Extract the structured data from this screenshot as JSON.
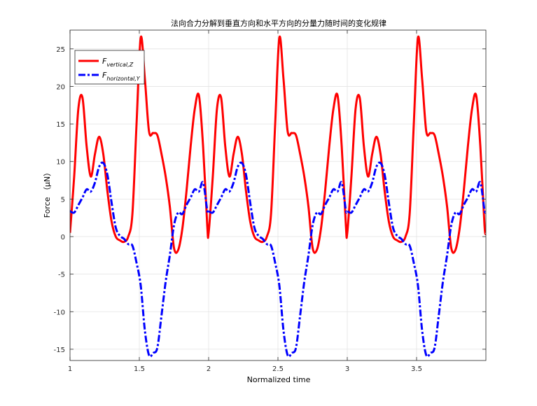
{
  "chart_data": {
    "type": "line",
    "title": "法向合力分解到垂直方向和水平方向的分量力随时间的变化规律",
    "xlabel": "Normalized time",
    "ylabel": "Force （μN）",
    "xlim": [
      1,
      4
    ],
    "ylim": [
      -16.5,
      27.5
    ],
    "xticks": [
      1,
      1.5,
      2,
      2.5,
      3,
      3.5
    ],
    "xtick_labels": [
      "1",
      "1.5",
      "2",
      "2.5",
      "3",
      "3.5"
    ],
    "yticks": [
      -15,
      -10,
      -5,
      0,
      5,
      10,
      15,
      20,
      25
    ],
    "ytick_labels": [
      "-15",
      "-10",
      "-5",
      "0",
      "5",
      "10",
      "15",
      "20",
      "25"
    ],
    "grid": true,
    "legend_position": "top-left",
    "legend": {
      "vertical": {
        "main": "F",
        "sub": "vertical,Z"
      },
      "horizontal": {
        "main": "F",
        "sub": "horizontal,Y"
      }
    },
    "period": 1,
    "series": [
      {
        "key": "vertical",
        "color": "#ff0000",
        "dash": "solid",
        "x_in_period": [
          0,
          0.03,
          0.06,
          0.09,
          0.12,
          0.15,
          0.18,
          0.21,
          0.24,
          0.27,
          0.3,
          0.33,
          0.36,
          0.39,
          0.42,
          0.45,
          0.48,
          0.51,
          0.54,
          0.57,
          0.6,
          0.63,
          0.66,
          0.69,
          0.72,
          0.75,
          0.78,
          0.81,
          0.84,
          0.87,
          0.9,
          0.93,
          0.96,
          0.99,
          1.0
        ],
        "values": [
          0.5,
          8,
          17,
          18.5,
          12,
          8,
          11,
          13.3,
          11,
          6,
          2,
          0,
          -0.5,
          -0.7,
          0,
          3,
          15,
          26.5,
          21,
          14,
          13.8,
          13.5,
          11,
          8,
          4,
          -1.5,
          -1.8,
          1,
          6,
          12,
          17,
          18.8,
          12,
          1.5,
          0.5
        ]
      },
      {
        "key": "horizontal",
        "color": "#0000ff",
        "dash": "dashdot",
        "x_in_period": [
          0,
          0.03,
          0.06,
          0.09,
          0.12,
          0.15,
          0.18,
          0.21,
          0.24,
          0.27,
          0.3,
          0.33,
          0.36,
          0.39,
          0.42,
          0.45,
          0.48,
          0.51,
          0.54,
          0.57,
          0.6,
          0.63,
          0.66,
          0.69,
          0.72,
          0.75,
          0.78,
          0.81,
          0.84,
          0.87,
          0.9,
          0.93,
          0.96,
          0.99,
          1.0
        ],
        "values": [
          3.4,
          3.2,
          4.2,
          5.2,
          6.3,
          6.0,
          7.2,
          9.3,
          9.8,
          8.2,
          4.5,
          1.2,
          0.1,
          -0.3,
          -1.0,
          -1.2,
          -3.5,
          -6.5,
          -12.5,
          -15.8,
          -15.5,
          -14.8,
          -10.5,
          -6.0,
          -2.5,
          1.5,
          3.2,
          3.0,
          4.2,
          5.2,
          6.3,
          6.0,
          7.2,
          3.5,
          3.4
        ]
      }
    ]
  }
}
